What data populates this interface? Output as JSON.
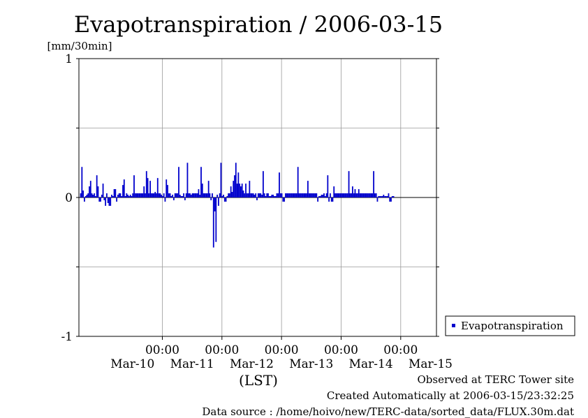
{
  "chart_data": {
    "type": "bar",
    "title": "Evapotranspiration / 2006-03-15",
    "ylabel": "[mm/30min]",
    "xlabel": "(LST)",
    "ylim": [
      -1,
      1
    ],
    "yticks": [
      -1,
      0,
      1
    ],
    "grid": true,
    "x_time_labels": [
      "00:00",
      "00:00",
      "00:00",
      "00:00",
      "00:00"
    ],
    "x_date_labels": [
      "Mar-10",
      "Mar-11",
      "Mar-12",
      "Mar-13",
      "Mar-14",
      "Mar-15"
    ],
    "legend": {
      "position": "right",
      "entries": [
        "Evapotranspiration"
      ]
    },
    "series": [
      {
        "name": "Evapotranspiration",
        "color": "#0000cc",
        "interval_days": 0.0208333,
        "values": [
          0.03,
          0.22,
          0.05,
          -0.03,
          0.01,
          0.02,
          0.03,
          0.08,
          0.12,
          0.03,
          0.02,
          0.03,
          0.01,
          0.16,
          0.08,
          -0.03,
          -0.03,
          0.02,
          0.1,
          -0.02,
          -0.06,
          0.03,
          -0.04,
          -0.06,
          -0.06,
          0.02,
          0.01,
          0.06,
          0.06,
          -0.03,
          0.02,
          0.03,
          0.03,
          0.01,
          0.09,
          0.13,
          0.01,
          0.03,
          0.02,
          0.01,
          0.02,
          0.01,
          0.03,
          0.16,
          0.03,
          0.03,
          0.03,
          0.03,
          0.03,
          0.03,
          0.03,
          0.08,
          0.03,
          0.19,
          0.14,
          0.03,
          0.12,
          0.03,
          0.03,
          0.03,
          0.04,
          0.03,
          0.14,
          0.03,
          0.03,
          0.02,
          0.01,
          0.03,
          -0.03,
          0.13,
          0.09,
          0.03,
          0.03,
          0.01,
          0.02,
          -0.02,
          0.03,
          0.03,
          0.03,
          0.22,
          0.02,
          0.01,
          0.01,
          0.03,
          -0.02,
          0.03,
          0.25,
          0.03,
          0.03,
          0.02,
          0.03,
          0.03,
          0.03,
          0.03,
          0.03,
          0.06,
          0.02,
          0.22,
          0.1,
          0.03,
          0.03,
          0.03,
          0.03,
          0.12,
          0.03,
          -0.02,
          0.03,
          -0.36,
          -0.1,
          -0.32,
          0.02,
          -0.06,
          0.03,
          0.25,
          0.01,
          0.02,
          -0.03,
          -0.03,
          0.01,
          0.03,
          0.03,
          0.08,
          0.04,
          0.12,
          0.16,
          0.25,
          0.1,
          0.18,
          0.1,
          0.08,
          0.1,
          0.05,
          0.03,
          0.1,
          0.03,
          0.03,
          0.12,
          0.03,
          0.03,
          0.03,
          0.02,
          0.03,
          -0.02,
          0.03,
          0.03,
          0.03,
          0.02,
          0.19,
          0.03,
          0.01,
          0.03,
          0.03,
          0.01,
          0.01,
          0.02,
          0.02,
          0.01,
          0.01,
          0.03,
          0.03,
          0.18,
          0.03,
          0.03,
          -0.03,
          -0.03,
          0.03,
          0.03,
          0.03,
          0.03,
          0.03,
          0.03,
          0.03,
          0.03,
          0.03,
          0.03,
          0.22,
          0.03,
          0.03,
          0.03,
          0.03,
          0.03,
          0.03,
          0.03,
          0.12,
          0.03,
          0.03,
          0.03,
          0.03,
          0.03,
          0.03,
          0.03,
          -0.03,
          0.01,
          0.01,
          0.02,
          0.02,
          0.03,
          0.01,
          0.03,
          0.16,
          -0.03,
          0.03,
          -0.03,
          -0.03,
          0.08,
          0.03,
          0.03,
          0.03,
          0.03,
          0.03,
          0.03,
          0.03,
          0.03,
          0.03,
          0.03,
          0.03,
          0.19,
          0.03,
          0.03,
          0.08,
          0.03,
          0.06,
          0.03,
          0.03,
          0.06,
          0.03,
          0.03,
          0.03,
          0.03,
          0.03,
          0.03,
          0.03,
          0.03,
          0.03,
          0.03,
          0.03,
          0.19,
          0.03,
          0.03,
          -0.03,
          0.01,
          0.01,
          0.01,
          0.01,
          0.02,
          0.01,
          0.01,
          0.01,
          0.03,
          -0.03,
          -0.03,
          0.01,
          0.01
        ]
      }
    ]
  },
  "footer": {
    "line1": "Observed at TERC Tower site",
    "line2": "Created Automatically at 2006-03-15/23:32:25",
    "line3": "Data source : /home/hoivo/new/TERC-data/sorted_data/FLUX.30m.dat"
  }
}
